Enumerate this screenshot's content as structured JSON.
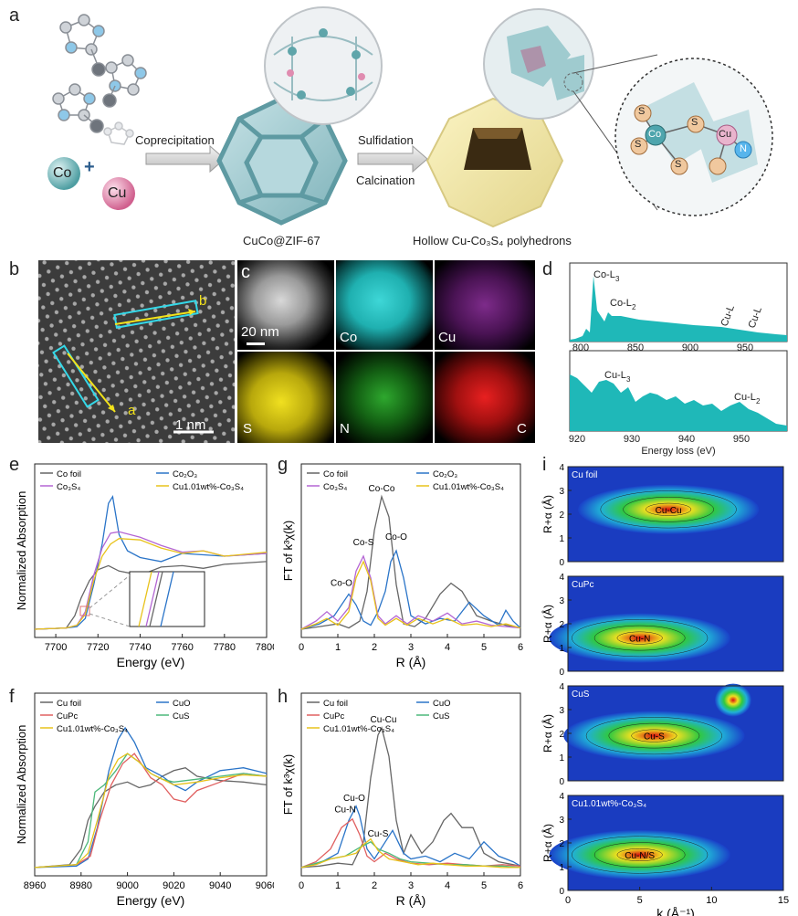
{
  "panel_a": {
    "letter": "a",
    "co_label": "Co",
    "plus": "+",
    "cu_label": "Cu",
    "step1": "Coprecipitation",
    "step2a": "Sulfidation",
    "step2b": "Calcination",
    "caption_mid": "CuCo@ZIF-67",
    "caption_right": "Hollow Cu-Co₃S₄ polyhedrons",
    "atoms": {
      "s": "S",
      "co": "Co",
      "cu": "Cu",
      "n": "N"
    }
  },
  "panel_b": {
    "letter": "b",
    "scale": "1 nm",
    "mark_a": "a",
    "mark_b": "b"
  },
  "panel_c": {
    "letter": "c",
    "scale": "20 nm",
    "maps": [
      "Co",
      "Cu",
      "S",
      "N",
      "C"
    ]
  },
  "panel_d": {
    "letter": "d",
    "top_ticks": [
      "800",
      "850",
      "900",
      "950"
    ],
    "bottom_ticks": [
      "920",
      "930",
      "940",
      "950"
    ],
    "xlabel": "Energy loss (eV)",
    "labels": {
      "coL3": "Co-L",
      "coL2": "Co-L",
      "cuL3": "Cu-L",
      "cuL2": "Cu-L",
      "cuL3b": "Cu-L",
      "cuL2b": "Cu-L"
    }
  },
  "colors": {
    "grey": "#666666",
    "blue": "#2a74c8",
    "purple": "#b466d4",
    "yellow": "#e8c21a",
    "red": "#e06060",
    "green": "#4cb87a",
    "teal": "#20b8b8"
  },
  "chart_data": [
    {
      "id": "e",
      "type": "line",
      "letter": "e",
      "xlabel": "Energy (eV)",
      "ylabel": "Normalized Absorption",
      "xlim": [
        7690,
        7800
      ],
      "xticks": [
        "7700",
        "7720",
        "7740",
        "7760",
        "7780",
        "7800"
      ],
      "legend": [
        "Co foil",
        "Co₂O₃",
        "Co₃S₄",
        "Cu1.01wt%-Co₃S₄"
      ],
      "series": [
        {
          "name": "Co foil",
          "x": [
            7690,
            7705,
            7709,
            7712,
            7716,
            7720,
            7725,
            7730,
            7740,
            7750,
            7760,
            7770,
            7780,
            7800
          ],
          "y": [
            0.02,
            0.03,
            0.12,
            0.25,
            0.38,
            0.46,
            0.49,
            0.45,
            0.42,
            0.48,
            0.49,
            0.47,
            0.5,
            0.52
          ]
        },
        {
          "name": "Co₂O₃",
          "x": [
            7690,
            7705,
            7710,
            7714,
            7718,
            7722,
            7725,
            7727,
            7730,
            7734,
            7740,
            7750,
            7760,
            7770,
            7780,
            7800
          ],
          "y": [
            0.02,
            0.03,
            0.04,
            0.1,
            0.35,
            0.65,
            0.95,
            1.0,
            0.72,
            0.6,
            0.55,
            0.52,
            0.58,
            0.57,
            0.56,
            0.58
          ]
        },
        {
          "name": "Co₃S₄",
          "x": [
            7690,
            7705,
            7710,
            7714,
            7718,
            7722,
            7726,
            7730,
            7740,
            7750,
            7760,
            7770,
            7780,
            7800
          ],
          "y": [
            0.02,
            0.03,
            0.05,
            0.15,
            0.42,
            0.62,
            0.73,
            0.74,
            0.7,
            0.64,
            0.59,
            0.6,
            0.56,
            0.58
          ]
        },
        {
          "name": "Cu1.01wt%-Co₃S₄",
          "x": [
            7690,
            7705,
            7710,
            7714,
            7718,
            7722,
            7726,
            7730,
            7740,
            7750,
            7760,
            7770,
            7780,
            7800
          ],
          "y": [
            0.02,
            0.03,
            0.05,
            0.13,
            0.38,
            0.56,
            0.65,
            0.69,
            0.68,
            0.62,
            0.58,
            0.6,
            0.56,
            0.59
          ]
        }
      ]
    },
    {
      "id": "g",
      "type": "line",
      "letter": "g",
      "xlabel": "R (Å)",
      "ylabel": "FT of k³χ(k)",
      "xlim": [
        0,
        6
      ],
      "xticks": [
        "0",
        "1",
        "2",
        "3",
        "4",
        "5",
        "6"
      ],
      "legend": [
        "Co foil",
        "Co₂O₃",
        "Co₃S₄",
        "Cu1.01wt%-Co₃S₄"
      ],
      "annotations": [
        "Co-Co",
        "Co-S",
        "Co-O",
        "Co-O"
      ],
      "series": [
        {
          "name": "Co foil",
          "x": [
            0,
            0.5,
            1,
            1.3,
            1.6,
            1.8,
            2.0,
            2.2,
            2.4,
            2.6,
            2.8,
            3.1,
            3.4,
            3.8,
            4.1,
            4.4,
            4.8,
            5.2,
            5.6,
            6
          ],
          "y": [
            0.02,
            0.04,
            0.06,
            0.03,
            0.08,
            0.3,
            0.75,
            1.0,
            0.85,
            0.35,
            0.06,
            0.04,
            0.1,
            0.28,
            0.36,
            0.3,
            0.12,
            0.08,
            0.05,
            0.03
          ]
        },
        {
          "name": "Co₂O₃",
          "x": [
            0,
            0.5,
            0.9,
            1.3,
            1.5,
            1.7,
            1.9,
            2.1,
            2.3,
            2.45,
            2.6,
            2.8,
            3.0,
            3.4,
            3.8,
            4.2,
            4.6,
            5.0,
            5.4,
            5.6,
            5.8,
            6
          ],
          "y": [
            0.02,
            0.06,
            0.12,
            0.28,
            0.2,
            0.08,
            0.05,
            0.15,
            0.3,
            0.52,
            0.6,
            0.4,
            0.12,
            0.06,
            0.1,
            0.08,
            0.22,
            0.12,
            0.05,
            0.16,
            0.08,
            0.03
          ]
        },
        {
          "name": "Co₃S₄",
          "x": [
            0,
            0.4,
            0.7,
            1.0,
            1.3,
            1.5,
            1.7,
            1.9,
            2.1,
            2.3,
            2.6,
            2.9,
            3.2,
            3.6,
            4.0,
            4.4,
            4.8,
            5.2,
            5.6,
            6
          ],
          "y": [
            0.02,
            0.08,
            0.15,
            0.08,
            0.18,
            0.45,
            0.56,
            0.4,
            0.12,
            0.06,
            0.12,
            0.06,
            0.12,
            0.08,
            0.14,
            0.06,
            0.08,
            0.05,
            0.04,
            0.03
          ]
        },
        {
          "name": "Cu1.01wt%-Co₃S₄",
          "x": [
            0,
            0.4,
            0.7,
            1.0,
            1.3,
            1.5,
            1.7,
            1.9,
            2.1,
            2.3,
            2.6,
            2.9,
            3.2,
            3.6,
            4.0,
            4.4,
            4.8,
            5.2,
            5.6,
            6
          ],
          "y": [
            0.02,
            0.06,
            0.1,
            0.05,
            0.15,
            0.4,
            0.52,
            0.38,
            0.1,
            0.05,
            0.1,
            0.05,
            0.1,
            0.06,
            0.1,
            0.05,
            0.06,
            0.04,
            0.06,
            0.03
          ]
        }
      ]
    },
    {
      "id": "f",
      "type": "line",
      "letter": "f",
      "xlabel": "Energy (eV)",
      "ylabel": "Normalized Absorption",
      "xlim": [
        8960,
        9060
      ],
      "xticks": [
        "8960",
        "8980",
        "9000",
        "9020",
        "9040",
        "9060"
      ],
      "legend": [
        "Cu foil",
        "CuO",
        "CuPc",
        "CuS",
        "Cu1.01wt%-Co₃S₄"
      ],
      "series": [
        {
          "name": "Cu foil",
          "x": [
            8960,
            8975,
            8980,
            8983,
            8986,
            8990,
            8995,
            9000,
            9005,
            9010,
            9015,
            9020,
            9025,
            9030,
            9040,
            9050,
            9060
          ],
          "y": [
            0.02,
            0.04,
            0.15,
            0.35,
            0.45,
            0.55,
            0.6,
            0.62,
            0.58,
            0.6,
            0.66,
            0.7,
            0.72,
            0.66,
            0.63,
            0.62,
            0.6
          ]
        },
        {
          "name": "CuO",
          "x": [
            8960,
            8978,
            8983,
            8987,
            8992,
            8996,
            8999,
            9003,
            9008,
            9015,
            9020,
            9025,
            9030,
            9040,
            9050,
            9060
          ],
          "y": [
            0.02,
            0.03,
            0.08,
            0.3,
            0.7,
            0.92,
            1.0,
            0.9,
            0.72,
            0.66,
            0.6,
            0.56,
            0.62,
            0.7,
            0.72,
            0.68
          ]
        },
        {
          "name": "CuPc",
          "x": [
            8960,
            8978,
            8984,
            8988,
            8993,
            8998,
            9003,
            9010,
            9015,
            9020,
            9025,
            9030,
            9040,
            9050,
            9060
          ],
          "y": [
            0.02,
            0.04,
            0.1,
            0.35,
            0.6,
            0.75,
            0.82,
            0.65,
            0.6,
            0.5,
            0.48,
            0.56,
            0.62,
            0.68,
            0.66
          ]
        },
        {
          "name": "CuS",
          "x": [
            8960,
            8978,
            8983,
            8986,
            8990,
            8995,
            9000,
            9005,
            9010,
            9015,
            9020,
            9030,
            9040,
            9050,
            9060
          ],
          "y": [
            0.02,
            0.04,
            0.2,
            0.55,
            0.6,
            0.7,
            0.82,
            0.76,
            0.68,
            0.64,
            0.62,
            0.64,
            0.66,
            0.68,
            0.66
          ]
        },
        {
          "name": "Cu1.01wt%-Co₃S₄",
          "x": [
            8960,
            8978,
            8983,
            8987,
            8992,
            8996,
            9000,
            9005,
            9010,
            9015,
            9020,
            9030,
            9040,
            9050,
            9060
          ],
          "y": [
            0.02,
            0.04,
            0.12,
            0.35,
            0.66,
            0.78,
            0.82,
            0.76,
            0.68,
            0.64,
            0.6,
            0.62,
            0.65,
            0.67,
            0.66
          ]
        }
      ]
    },
    {
      "id": "h",
      "type": "line",
      "letter": "h",
      "xlabel": "R (Å)",
      "ylabel": "FT of k³χ(k)",
      "xlim": [
        0,
        6
      ],
      "xticks": [
        "0",
        "1",
        "2",
        "3",
        "4",
        "5",
        "6"
      ],
      "legend": [
        "Cu foil",
        "CuO",
        "CuPc",
        "CuS",
        "Cu1.01wt%-Co₃S₄"
      ],
      "annotations": [
        "Cu-Cu",
        "Cu-O",
        "Cu-N",
        "Cu-S"
      ],
      "series": [
        {
          "name": "Cu foil",
          "x": [
            0,
            0.5,
            1,
            1.4,
            1.7,
            1.9,
            2.1,
            2.2,
            2.4,
            2.6,
            2.8,
            3.0,
            3.3,
            3.6,
            3.9,
            4.1,
            4.4,
            4.7,
            5.0,
            5.4,
            6
          ],
          "y": [
            0.02,
            0.03,
            0.05,
            0.04,
            0.2,
            0.65,
            0.95,
            1.0,
            0.8,
            0.35,
            0.12,
            0.25,
            0.12,
            0.2,
            0.35,
            0.4,
            0.3,
            0.3,
            0.12,
            0.06,
            0.03
          ]
        },
        {
          "name": "CuO",
          "x": [
            0,
            0.5,
            1,
            1.3,
            1.5,
            1.6,
            1.8,
            2.0,
            2.3,
            2.5,
            2.8,
            3.0,
            3.4,
            3.8,
            4.2,
            4.6,
            5.0,
            5.4,
            5.8,
            6
          ],
          "y": [
            0.02,
            0.05,
            0.12,
            0.35,
            0.45,
            0.38,
            0.15,
            0.08,
            0.2,
            0.28,
            0.12,
            0.08,
            0.1,
            0.06,
            0.12,
            0.08,
            0.2,
            0.1,
            0.06,
            0.03
          ]
        },
        {
          "name": "CuPc",
          "x": [
            0,
            0.4,
            0.8,
            1.1,
            1.4,
            1.6,
            1.8,
            2.0,
            2.3,
            2.6,
            3.0,
            3.5,
            4.0,
            4.5,
            5.0,
            5.5,
            6
          ],
          "y": [
            0.02,
            0.06,
            0.15,
            0.3,
            0.36,
            0.25,
            0.1,
            0.06,
            0.12,
            0.08,
            0.05,
            0.04,
            0.05,
            0.04,
            0.03,
            0.04,
            0.03
          ]
        },
        {
          "name": "CuS",
          "x": [
            0,
            0.4,
            0.8,
            1.2,
            1.6,
            1.9,
            2.1,
            2.4,
            2.7,
            3.0,
            3.5,
            4.0,
            4.5,
            5.0,
            5.5,
            6
          ],
          "y": [
            0.02,
            0.05,
            0.08,
            0.1,
            0.16,
            0.2,
            0.15,
            0.12,
            0.08,
            0.06,
            0.05,
            0.04,
            0.04,
            0.03,
            0.03,
            0.02
          ]
        },
        {
          "name": "Cu1.01wt%-Co₃S₄",
          "x": [
            0,
            0.4,
            0.8,
            1.2,
            1.5,
            1.7,
            1.9,
            2.1,
            2.4,
            2.8,
            3.2,
            3.6,
            4.0,
            4.5,
            5.0,
            5.5,
            6
          ],
          "y": [
            0.02,
            0.04,
            0.08,
            0.1,
            0.12,
            0.18,
            0.22,
            0.14,
            0.08,
            0.06,
            0.04,
            0.05,
            0.04,
            0.03,
            0.03,
            0.02,
            0.02
          ]
        }
      ]
    },
    {
      "id": "i",
      "type": "heatmap",
      "letter": "i",
      "xlabel": "k (Å⁻¹)",
      "ylabel": "R+α (Å)",
      "xlim": [
        0,
        15
      ],
      "ylim": [
        0,
        4
      ],
      "xticks": [
        "0",
        "5",
        "10",
        "15"
      ],
      "yticks": [
        "0",
        "1",
        "2",
        "3",
        "4"
      ],
      "panels": [
        {
          "name": "Cu foil",
          "peak_label": "Cu-Cu",
          "peak": [
            7,
            2.2
          ]
        },
        {
          "name": "CuPc",
          "peak_label": "Cu-N",
          "peak": [
            5,
            1.4
          ]
        },
        {
          "name": "CuS",
          "peak_label": "Cu-S",
          "peak": [
            6,
            1.9
          ]
        },
        {
          "name": "Cu1.01wt%-Co₃S₄",
          "peak_label": "Cu-N/S",
          "peak": [
            5,
            1.5
          ]
        }
      ]
    }
  ]
}
